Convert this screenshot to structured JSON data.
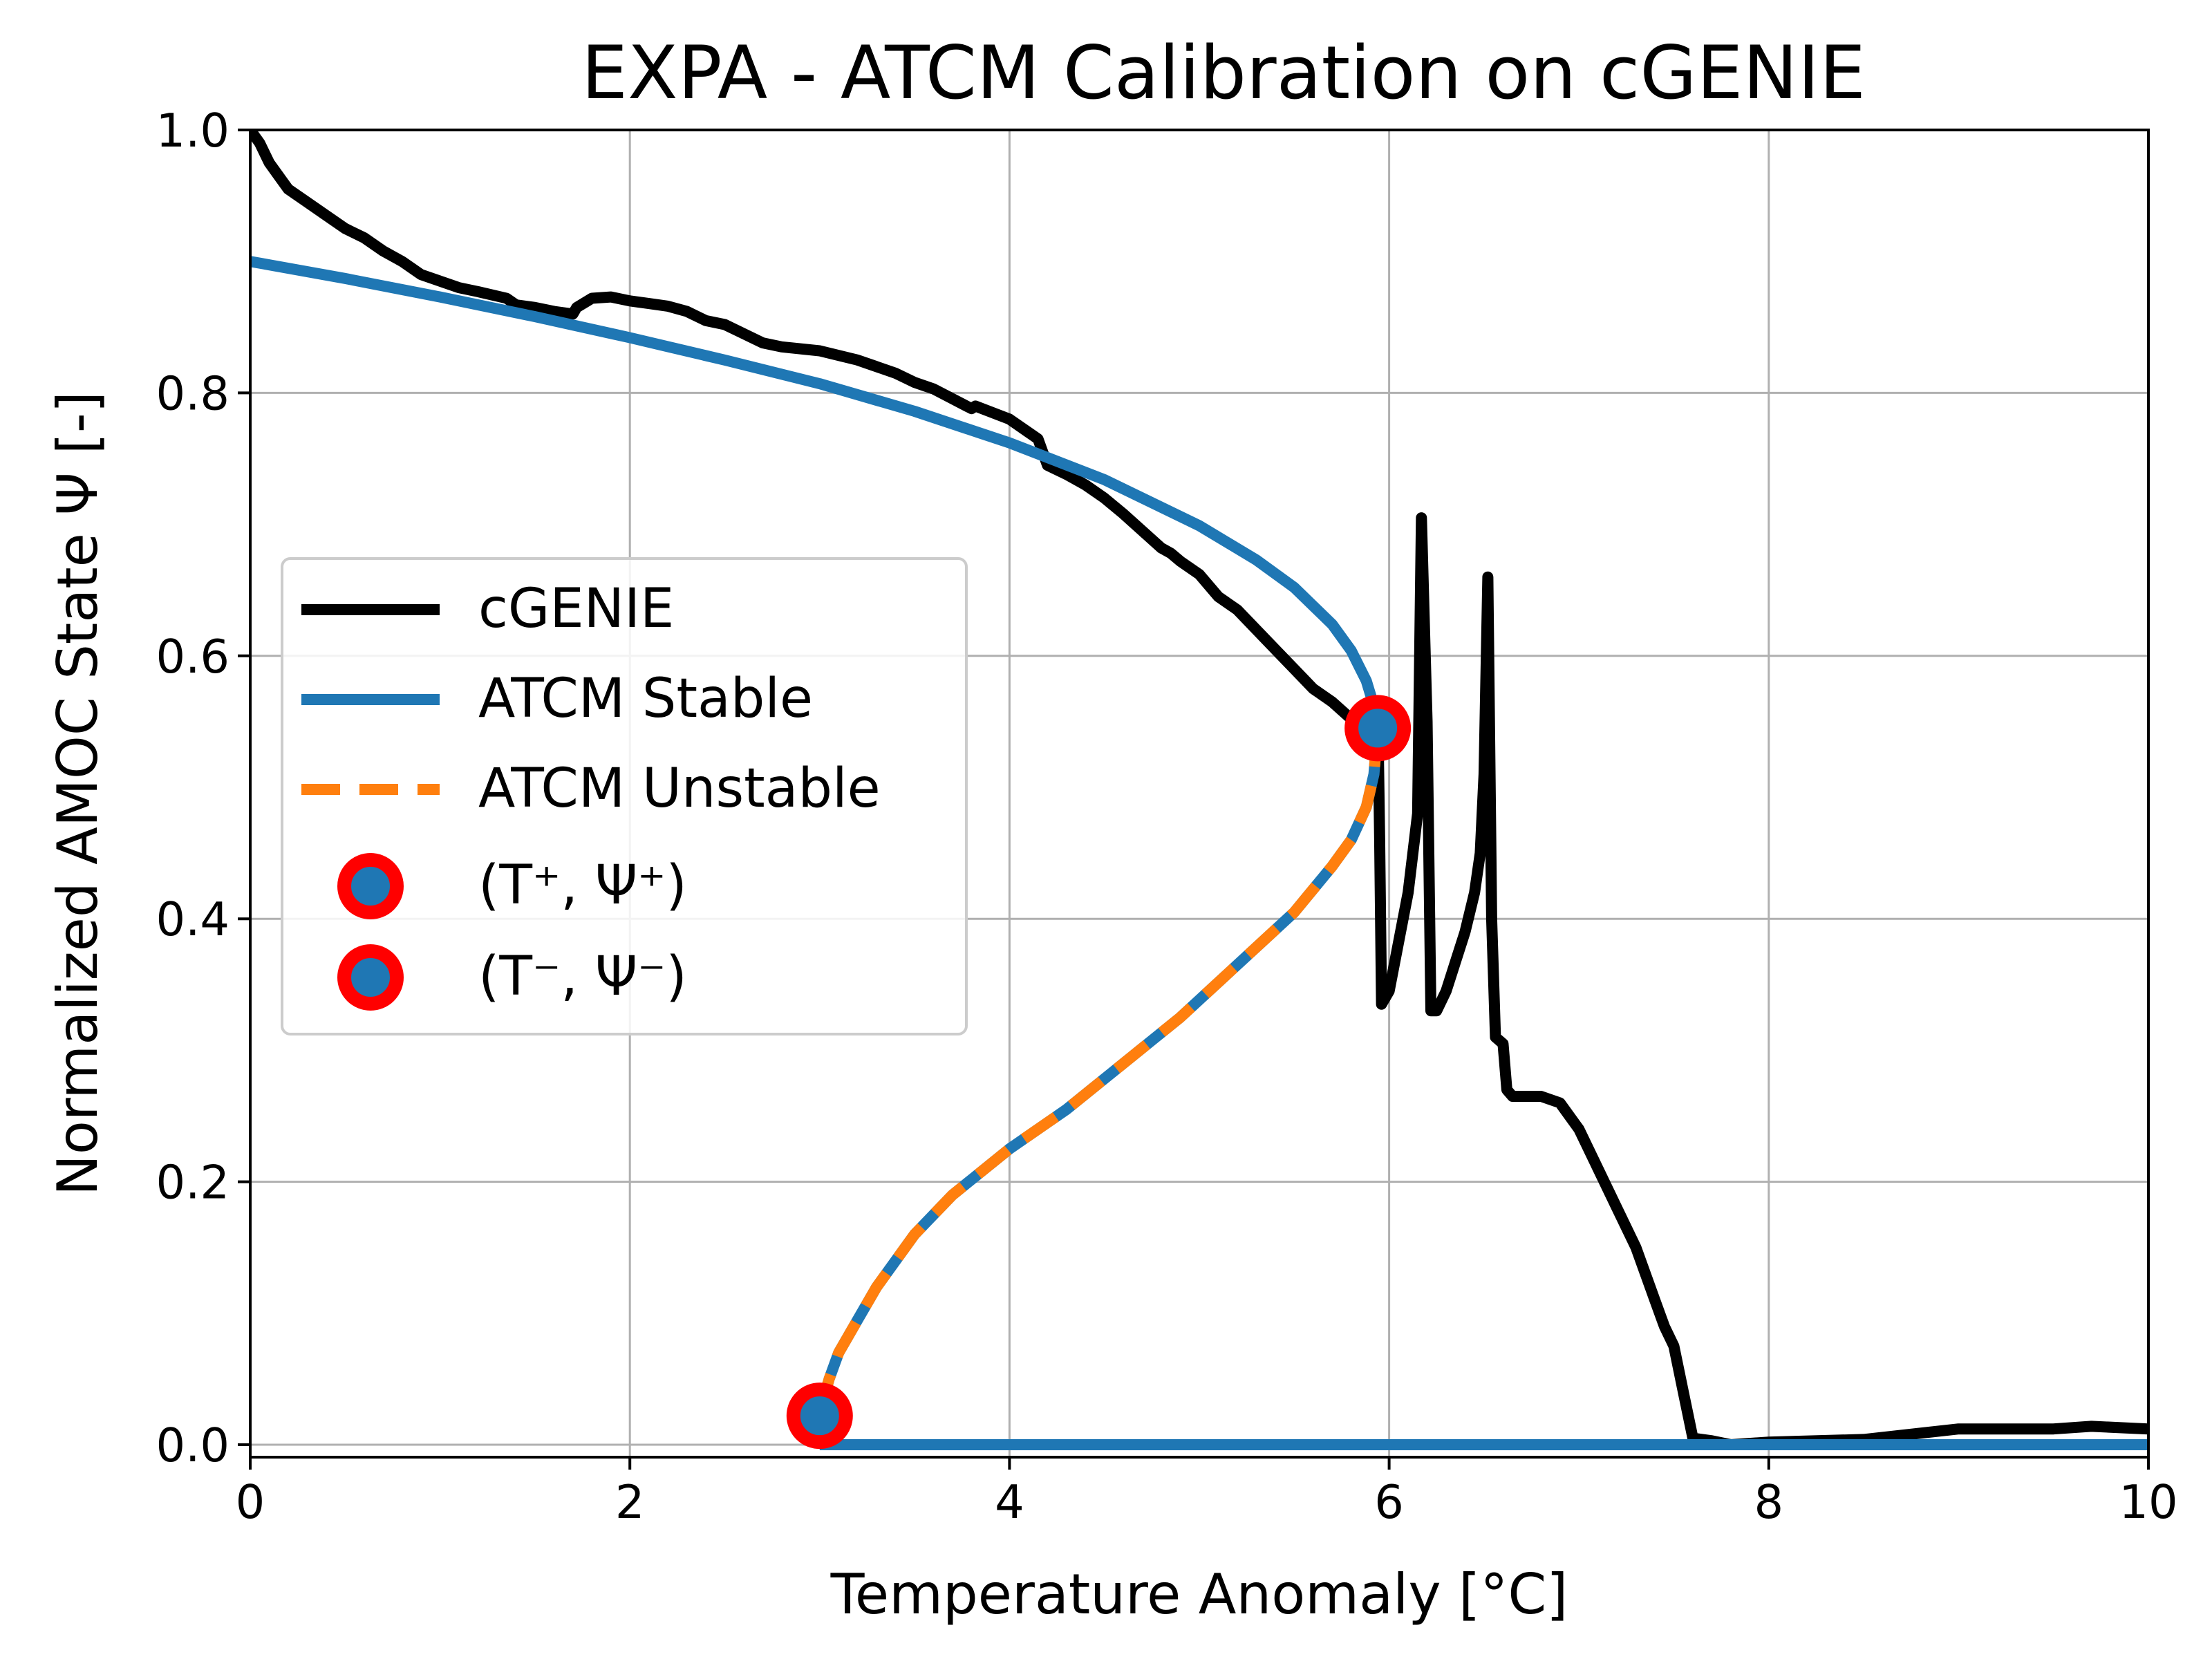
{
  "chart_data": {
    "type": "line",
    "title": "EXPA - ATCM Calibration on cGENIE",
    "xlabel": "Temperature Anomaly [°C]",
    "ylabel": "Normalized AMOC State Ψ [-]",
    "xlim": [
      0,
      10
    ],
    "ylim": [
      0,
      1.0
    ],
    "xticks": [
      0,
      2,
      4,
      6,
      8,
      10
    ],
    "xtick_labels": [
      "0",
      "2",
      "4",
      "6",
      "8",
      "10"
    ],
    "yticks": [
      0.0,
      0.2,
      0.4,
      0.6,
      0.8,
      1.0
    ],
    "ytick_labels": [
      "0.0",
      "0.2",
      "0.4",
      "0.6",
      "0.8",
      "1.0"
    ],
    "grid": true,
    "legend_position": "center-left",
    "series": [
      {
        "name": "cGENIE",
        "color": "#000000",
        "style": "solid",
        "x": [
          0.0,
          0.05,
          0.1,
          0.15,
          0.2,
          0.3,
          0.4,
          0.5,
          0.6,
          0.7,
          0.8,
          0.9,
          1.0,
          1.1,
          1.2,
          1.35,
          1.4,
          1.5,
          1.6,
          1.7,
          1.72,
          1.8,
          1.9,
          2.0,
          2.1,
          2.2,
          2.3,
          2.4,
          2.5,
          2.6,
          2.7,
          2.8,
          3.0,
          3.2,
          3.4,
          3.5,
          3.6,
          3.8,
          3.82,
          4.0,
          4.1,
          4.15,
          4.2,
          4.3,
          4.4,
          4.5,
          4.6,
          4.7,
          4.8,
          4.85,
          4.9,
          5.0,
          5.1,
          5.2,
          5.3,
          5.4,
          5.5,
          5.6,
          5.7,
          5.8,
          5.9,
          5.93,
          5.94,
          5.95,
          5.96,
          6.0,
          6.1,
          6.15,
          6.17,
          6.2,
          6.22,
          6.25,
          6.3,
          6.4,
          6.45,
          6.48,
          6.5,
          6.52,
          6.54,
          6.56,
          6.6,
          6.62,
          6.65,
          6.7,
          6.8,
          6.9,
          7.0,
          7.1,
          7.2,
          7.3,
          7.4,
          7.45,
          7.5,
          7.55,
          7.6,
          7.7,
          7.8,
          8.0,
          8.5,
          9.0,
          9.5,
          9.7,
          10.0
        ],
        "y": [
          1.0,
          0.99,
          0.975,
          0.965,
          0.955,
          0.945,
          0.935,
          0.925,
          0.918,
          0.908,
          0.9,
          0.89,
          0.885,
          0.88,
          0.877,
          0.872,
          0.867,
          0.865,
          0.862,
          0.86,
          0.865,
          0.872,
          0.873,
          0.87,
          0.868,
          0.866,
          0.862,
          0.855,
          0.852,
          0.845,
          0.838,
          0.835,
          0.832,
          0.825,
          0.815,
          0.808,
          0.803,
          0.788,
          0.79,
          0.78,
          0.77,
          0.765,
          0.745,
          0.738,
          0.73,
          0.72,
          0.708,
          0.695,
          0.682,
          0.678,
          0.672,
          0.662,
          0.645,
          0.635,
          0.62,
          0.605,
          0.59,
          0.575,
          0.565,
          0.552,
          0.545,
          0.545,
          0.56,
          0.46,
          0.335,
          0.345,
          0.42,
          0.48,
          0.705,
          0.55,
          0.33,
          0.33,
          0.345,
          0.39,
          0.42,
          0.45,
          0.51,
          0.66,
          0.4,
          0.31,
          0.305,
          0.27,
          0.265,
          0.265,
          0.265,
          0.26,
          0.24,
          0.21,
          0.18,
          0.15,
          0.11,
          0.09,
          0.075,
          0.04,
          0.005,
          0.003,
          0.0,
          0.002,
          0.004,
          0.012,
          0.012,
          0.014,
          0.012
        ]
      },
      {
        "name": "ATCM Stable",
        "color": "#1f77b4",
        "style": "solid",
        "x": [
          0.0,
          0.5,
          1.0,
          1.5,
          2.0,
          2.5,
          3.0,
          3.5,
          4.0,
          4.5,
          5.0,
          5.3,
          5.5,
          5.7,
          5.8,
          5.88,
          5.93,
          5.94
        ],
        "y": [
          0.9,
          0.887,
          0.873,
          0.858,
          0.842,
          0.825,
          0.807,
          0.786,
          0.762,
          0.734,
          0.699,
          0.673,
          0.652,
          0.624,
          0.604,
          0.581,
          0.557,
          0.545
        ],
        "lower_branch": {
          "x": [
            3.0,
            10.0
          ],
          "y": [
            0.0,
            0.0
          ]
        }
      },
      {
        "name": "ATCM Unstable",
        "color": "#ff7f0e",
        "style": "dashed",
        "x": [
          5.94,
          5.92,
          5.88,
          5.8,
          5.7,
          5.5,
          5.2,
          4.9,
          4.6,
          4.3,
          4.0,
          3.7,
          3.5,
          3.3,
          3.2,
          3.1,
          3.05,
          3.02,
          3.0
        ],
        "y": [
          0.545,
          0.51,
          0.485,
          0.46,
          0.44,
          0.405,
          0.365,
          0.325,
          0.29,
          0.255,
          0.225,
          0.19,
          0.16,
          0.12,
          0.095,
          0.07,
          0.05,
          0.035,
          0.022
        ]
      },
      {
        "name": "(T⁺, Ψ⁺)",
        "type": "scatter",
        "marker_fill": "#1f77b4",
        "marker_edge": "#ff0000",
        "points": [
          {
            "x": 5.94,
            "y": 0.545
          }
        ]
      },
      {
        "name": "(T⁻, Ψ⁻)",
        "type": "scatter",
        "marker_fill": "#1f77b4",
        "marker_edge": "#ff0000",
        "points": [
          {
            "x": 3.0,
            "y": 0.022
          }
        ]
      }
    ]
  }
}
